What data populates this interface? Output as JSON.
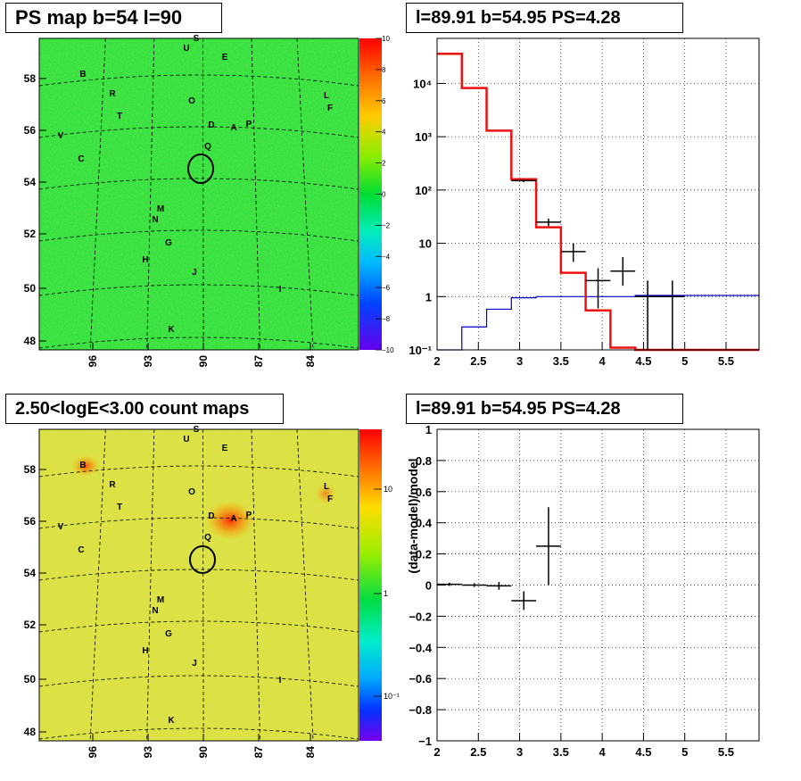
{
  "panels": {
    "ps_map": {
      "title": "PS map b=54 l=90",
      "colorbar_labels": [
        "10",
        "8",
        "6",
        "4",
        "2",
        "0",
        "−2",
        "−4",
        "−6",
        "−8",
        "−10"
      ],
      "lat_labels": [
        "58",
        "56",
        "54",
        "52",
        "50",
        "48"
      ],
      "lon_labels": [
        "96",
        "93",
        "90",
        "87",
        "84"
      ]
    },
    "count_map": {
      "title": "2.50<logE<3.00 count maps",
      "colorbar_labels": [
        "10",
        "1",
        "10⁻¹"
      ],
      "lat_labels": [
        "58",
        "56",
        "54",
        "52",
        "50",
        "48"
      ],
      "lon_labels": [
        "96",
        "93",
        "90",
        "87",
        "84"
      ]
    },
    "spectrum": {
      "title": "l=89.91 b=54.95 PS=4.28"
    },
    "residual": {
      "title": "l=89.91 b=54.95 PS=4.28"
    }
  },
  "source_labels": [
    "S",
    "U",
    "E",
    "B",
    "L",
    "R",
    "F",
    "O",
    "T",
    "D",
    "A",
    "P",
    "V",
    "Q",
    "C",
    "M",
    "N",
    "G",
    "H",
    "J",
    "I",
    "K"
  ],
  "colors": {
    "ps_map_bg": "#22dd33",
    "count_map_bg": "#e8dc3c",
    "model_total": "#ee1111",
    "model_bkg": "#0000cc",
    "data": "#000000"
  },
  "chart_data": [
    {
      "type": "line",
      "panel": "spectrum",
      "xlim": [
        2,
        5.9
      ],
      "ylim": [
        0.1,
        70000
      ],
      "log_y": true,
      "grid": true,
      "x_ticks": [
        "2",
        "2.5",
        "3",
        "3.5",
        "4",
        "4.5",
        "5",
        "5.5"
      ],
      "y_ticks": [
        "10⁻¹",
        "1",
        "10",
        "10²",
        "10³",
        "10⁴"
      ],
      "bin_edges": [
        2.0,
        2.3,
        2.6,
        2.9,
        3.2,
        3.5,
        3.8,
        4.1,
        4.4,
        4.7,
        5.0,
        5.9
      ],
      "series": [
        {
          "role": "model_total",
          "values": [
            36000,
            8200,
            1300,
            160,
            20,
            2.8,
            0.55,
            0.11,
            0.1,
            0.1,
            0.1
          ]
        },
        {
          "role": "model_background",
          "values": [
            0.1,
            0.27,
            0.58,
            0.95,
            1.0,
            1.0,
            1.0,
            1.0,
            1.05,
            1.05,
            1.05
          ]
        },
        {
          "role": "data",
          "points": [
            {
              "x": 3.05,
              "xerr": 0.15,
              "y": 150,
              "ylo": 140,
              "yhi": 160
            },
            {
              "x": 3.35,
              "xerr": 0.15,
              "y": 25,
              "ylo": 21,
              "yhi": 29
            },
            {
              "x": 3.65,
              "xerr": 0.15,
              "y": 7,
              "ylo": 4.5,
              "yhi": 10
            },
            {
              "x": 3.95,
              "xerr": 0.15,
              "y": 2,
              "ylo": 0.6,
              "yhi": 3.4
            },
            {
              "x": 4.25,
              "xerr": 0.15,
              "y": 3,
              "ylo": 1.6,
              "yhi": 5.5
            },
            {
              "x": 4.55,
              "xerr": 0.15,
              "y": 1,
              "ylo": 0.1,
              "yhi": 2.0
            },
            {
              "x": 4.85,
              "xerr": 0.15,
              "y": 1,
              "ylo": 0.1,
              "yhi": 2.0
            }
          ]
        }
      ]
    },
    {
      "type": "scatter",
      "panel": "residual",
      "xlim": [
        2,
        5.9
      ],
      "ylim": [
        -1,
        1
      ],
      "grid": true,
      "ylabel": "(data-model)/model",
      "x_ticks": [
        "2",
        "2.5",
        "3",
        "3.5",
        "4",
        "4.5",
        "5",
        "5.5"
      ],
      "y_ticks": [
        "−1",
        "−0.8",
        "−0.6",
        "−0.4",
        "−0.2",
        "0",
        "0.2",
        "0.4",
        "0.6",
        "0.8",
        "1"
      ],
      "points": [
        {
          "x": 2.15,
          "xerr": 0.15,
          "y": 0.005,
          "yerr": 0.01
        },
        {
          "x": 2.45,
          "xerr": 0.15,
          "y": 0.0,
          "yerr": 0.012
        },
        {
          "x": 2.75,
          "xerr": 0.15,
          "y": -0.005,
          "yerr": 0.025
        },
        {
          "x": 3.05,
          "xerr": 0.15,
          "y": -0.1,
          "yerr": 0.06
        },
        {
          "x": 3.35,
          "xerr": 0.15,
          "y": 0.25,
          "yerr": 0.25
        }
      ]
    }
  ]
}
